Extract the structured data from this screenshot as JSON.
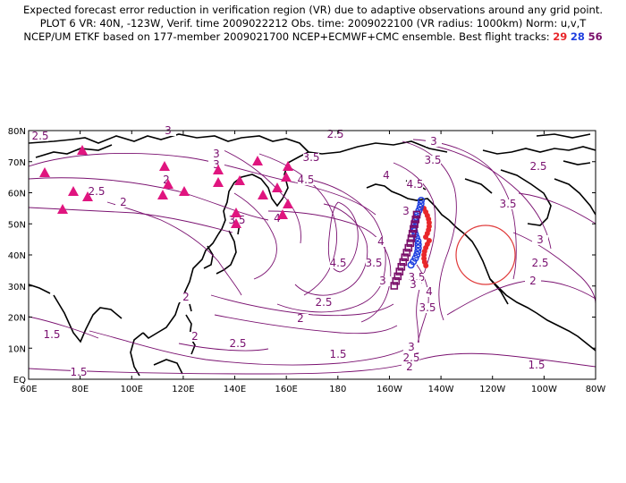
{
  "header": {
    "line1": "Expected forecast error reduction in verification region (VR) due to adaptive observations around any grid point.",
    "line2": "PLOT 6 VR: 40N, -123W, Verif. time 2009022212 Obs. time: 2009022100 (VR radius: 1000km) Norm: u,v,T",
    "line3_prefix": "NCEP/UM ETKF based on 177-member 2009021700 NCEP+ECMWF+CMC ensemble. Best flight tracks:",
    "track_29": "29",
    "track_28": "28",
    "track_56": "56"
  },
  "map": {
    "lat_labels": [
      "80N",
      "70N",
      "60N",
      "50N",
      "40N",
      "30N",
      "20N",
      "10N",
      "EQ"
    ],
    "lon_labels": [
      "60E",
      "80E",
      "100E",
      "120E",
      "140E",
      "160E",
      "180",
      "160W",
      "140W",
      "120W",
      "100W",
      "80W"
    ],
    "contour_labels": [
      {
        "text": "2.5"
      },
      {
        "text": "3"
      },
      {
        "text": "2.5"
      },
      {
        "text": "3"
      },
      {
        "text": "3.5"
      },
      {
        "text": "3"
      },
      {
        "text": "3.5"
      },
      {
        "text": "4"
      },
      {
        "text": "4.5"
      },
      {
        "text": "2"
      },
      {
        "text": "2.5"
      },
      {
        "text": "3.5"
      },
      {
        "text": "2"
      },
      {
        "text": "4.5"
      },
      {
        "text": "3.5"
      },
      {
        "text": "4"
      },
      {
        "text": "3"
      },
      {
        "text": "3.5"
      },
      {
        "text": "3"
      },
      {
        "text": "4"
      },
      {
        "text": "4.5"
      },
      {
        "text": "2.5"
      },
      {
        "text": "3"
      },
      {
        "text": "2"
      },
      {
        "text": "2"
      },
      {
        "text": "2"
      },
      {
        "text": "3.5"
      },
      {
        "text": "2.5"
      },
      {
        "text": "1.5"
      },
      {
        "text": "2"
      },
      {
        "text": "2.5"
      },
      {
        "text": "1.5"
      },
      {
        "text": "3"
      },
      {
        "text": "2.5"
      },
      {
        "text": "2"
      },
      {
        "text": "1.5"
      },
      {
        "text": "1.5"
      },
      {
        "text": "3"
      },
      {
        "text": "2.5"
      },
      {
        "text": "3.5"
      },
      {
        "text": "4"
      },
      {
        "text": "3"
      }
    ],
    "verification_region": {
      "center_lat": 40,
      "center_lon": -123,
      "radius_km": 1000,
      "color": "#e03a3a"
    },
    "raob_color": "#e0157f",
    "contour_color": "#7a1170",
    "track_colors": {
      "29": "#e8262a",
      "28": "#1f3fe0",
      "56": "#7a0f6a"
    }
  }
}
